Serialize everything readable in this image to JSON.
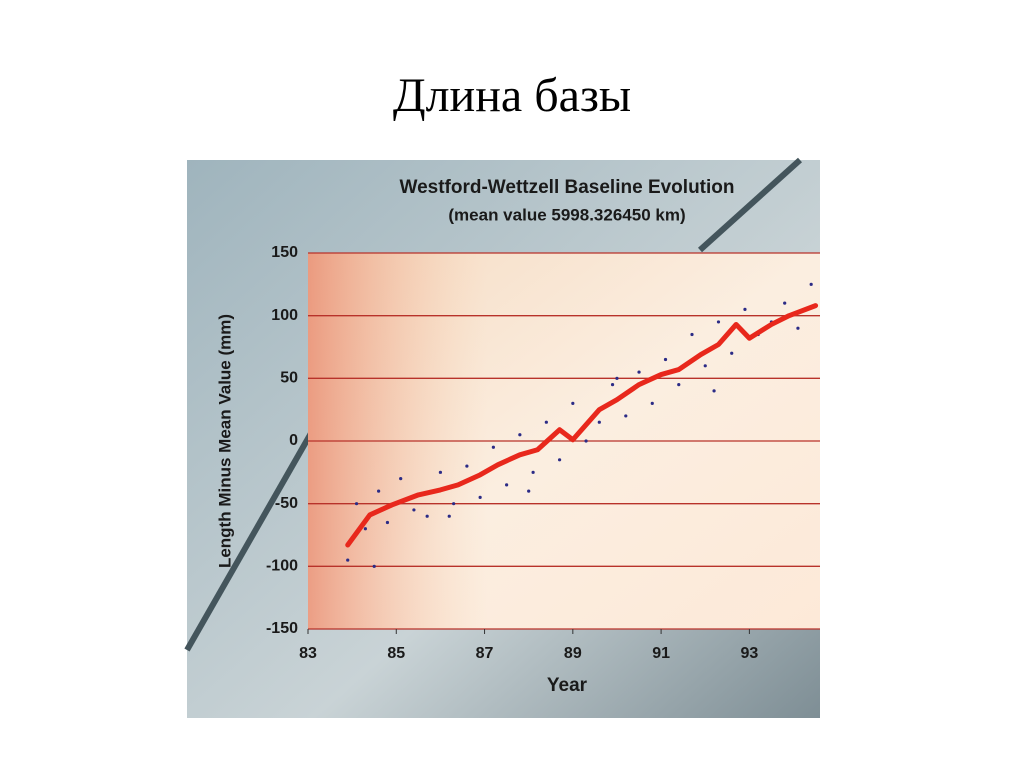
{
  "slide_title": "Длина базы",
  "chart_data": {
    "type": "line",
    "title": "Westford-Wettzell Baseline Evolution",
    "subtitle": "(mean value 5998.326450 km)",
    "y_label": "Length Minus Mean Value (mm)",
    "x_label": "Year",
    "xlim": [
      83,
      94.6
    ],
    "xticks": [
      83,
      85,
      87,
      89,
      91,
      93
    ],
    "ylim": [
      -150,
      150
    ],
    "yticks": [
      -150,
      -100,
      -50,
      0,
      50,
      100,
      150
    ],
    "grid": true,
    "series": [
      {
        "style": "dots",
        "color": "#2b2b86",
        "x": [
          83.9,
          84.1,
          84.3,
          84.6,
          84.8,
          85.1,
          85.4,
          85.7,
          86.0,
          86.3,
          86.6,
          86.9,
          87.2,
          87.5,
          87.8,
          88.1,
          88.4,
          88.7,
          89.0,
          89.3,
          89.6,
          89.9,
          90.2,
          90.5,
          90.8,
          91.1,
          91.4,
          91.7,
          92.0,
          92.3,
          92.6,
          92.9,
          93.2,
          93.5,
          93.8,
          94.1,
          94.4,
          84.5,
          86.2,
          88.0,
          90.0,
          92.2
        ],
        "values": [
          -95,
          -50,
          -70,
          -40,
          -65,
          -30,
          -55,
          -60,
          -25,
          -50,
          -20,
          -45,
          -5,
          -35,
          5,
          -25,
          15,
          -15,
          30,
          0,
          15,
          45,
          20,
          55,
          30,
          65,
          45,
          85,
          60,
          95,
          70,
          105,
          85,
          95,
          110,
          90,
          125,
          -100,
          -60,
          -40,
          50,
          40
        ]
      },
      {
        "style": "line",
        "color": "#e8281c",
        "x": [
          83.9,
          84.4,
          84.9,
          85.5,
          86.0,
          86.4,
          86.9,
          87.3,
          87.8,
          88.2,
          88.7,
          89.0,
          89.6,
          90.0,
          90.5,
          91.0,
          91.4,
          91.9,
          92.3,
          92.7,
          93.0,
          93.5,
          93.9,
          94.5
        ],
        "values": [
          -83,
          -59,
          -51,
          -43,
          -39,
          -35,
          -27,
          -19,
          -11,
          -7,
          9,
          1,
          25,
          33,
          45,
          53,
          57,
          69,
          77,
          93,
          82,
          93,
          100,
          108
        ]
      }
    ]
  }
}
